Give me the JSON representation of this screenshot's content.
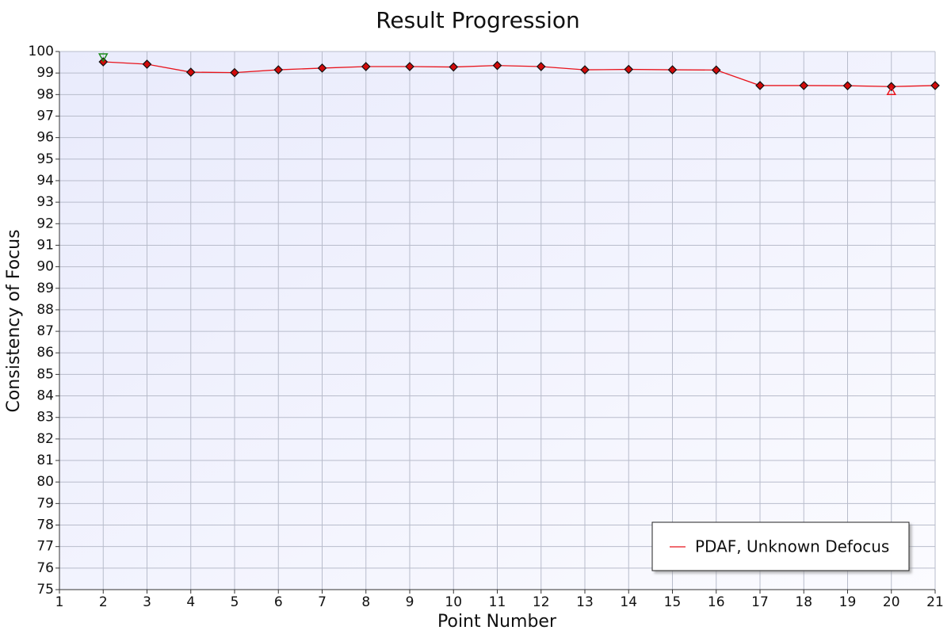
{
  "chart_data": {
    "type": "line",
    "title": "Result Progression",
    "x_label": "Point Number",
    "y_label": "Consistency of Focus",
    "x": [
      2,
      3,
      4,
      5,
      6,
      7,
      8,
      9,
      10,
      11,
      12,
      13,
      14,
      15,
      16,
      17,
      18,
      19,
      20,
      21
    ],
    "series": [
      {
        "name": "PDAF, Unknown Defocus",
        "color": "#e8141c",
        "values": [
          99.52,
          99.41,
          99.04,
          99.02,
          99.15,
          99.23,
          99.3,
          99.3,
          99.28,
          99.35,
          99.3,
          99.15,
          99.17,
          99.15,
          99.14,
          98.42,
          98.42,
          98.41,
          98.37,
          98.42
        ]
      }
    ],
    "xlim": [
      1,
      21
    ],
    "xticks": [
      1,
      2,
      3,
      4,
      5,
      6,
      7,
      8,
      9,
      10,
      11,
      12,
      13,
      14,
      15,
      16,
      17,
      18,
      19,
      20,
      21
    ],
    "ylim": [
      75,
      100
    ],
    "yticks": [
      75,
      76,
      77,
      78,
      79,
      80,
      81,
      82,
      83,
      84,
      85,
      86,
      87,
      88,
      89,
      90,
      91,
      92,
      93,
      94,
      95,
      96,
      97,
      98,
      99,
      100
    ],
    "grid": true,
    "legend": "lower right",
    "max_marker_color": "#1a8a1a",
    "min_marker_color": "#e8141c"
  }
}
